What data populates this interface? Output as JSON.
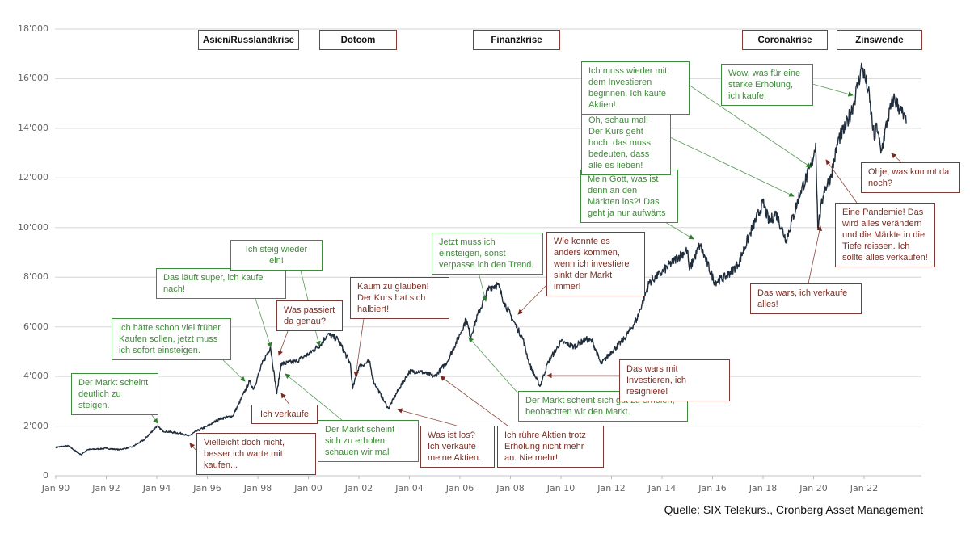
{
  "chart_data": {
    "type": "line",
    "title": "",
    "xlabel": "",
    "ylabel": "",
    "ylim": [
      0,
      18000
    ],
    "yticks": [
      "0",
      "2'000",
      "4'000",
      "6'000",
      "8'000",
      "10'000",
      "12'000",
      "14'000",
      "16'000",
      "18'000"
    ],
    "xticks": [
      "Jan 90",
      "Jan 92",
      "Jan 94",
      "Jan 96",
      "Jan 98",
      "Jan 00",
      "Jan 02",
      "Jan 04",
      "Jan 06",
      "Jan 08",
      "Jan 10",
      "Jan 12",
      "Jan 14",
      "Jan 16",
      "Jan 18",
      "Jan 20",
      "Jan 22"
    ],
    "grid": "horizontal",
    "line_color": "#1f2d3d",
    "series": [
      {
        "x": [
          "1990-01",
          "1990-07",
          "1990-12",
          "1991-01",
          "1991-04",
          "1992-01",
          "1992-07",
          "1993-01",
          "1993-07",
          "1994-01",
          "1994-04",
          "1995-01",
          "1995-04",
          "1995-08",
          "1996-01",
          "1996-07",
          "1997-01",
          "1997-04",
          "1997-09",
          "1997-11",
          "1998-03",
          "1998-07",
          "1998-10",
          "1998-12",
          "1999-07",
          "2000-01",
          "2000-07",
          "2000-10",
          "2001-03",
          "2001-09",
          "2001-10",
          "2002-01",
          "2002-06",
          "2002-08",
          "2003-01",
          "2003-03",
          "2003-08",
          "2004-01",
          "2004-06",
          "2005-01",
          "2005-07",
          "2006-01",
          "2006-04",
          "2006-06",
          "2006-10",
          "2007-03",
          "2007-07",
          "2007-10",
          "2008-02",
          "2008-07",
          "2008-10",
          "2009-03",
          "2009-07",
          "2010-01",
          "2010-07",
          "2011-01",
          "2011-04",
          "2011-08",
          "2012-01",
          "2012-07",
          "2013-01",
          "2013-07",
          "2014-01",
          "2014-07",
          "2015-01",
          "2015-02",
          "2015-07",
          "2016-02",
          "2016-07",
          "2017-01",
          "2017-07",
          "2018-01",
          "2018-04",
          "2018-07",
          "2018-12",
          "2019-07",
          "2019-12",
          "2020-02",
          "2020-03",
          "2020-06",
          "2020-09",
          "2021-01",
          "2021-04",
          "2021-08",
          "2021-12",
          "2022-03",
          "2022-06",
          "2022-07",
          "2022-09",
          "2022-12",
          "2023-03",
          "2023-06",
          "2023-09"
        ],
        "y": [
          1150,
          1200,
          900,
          850,
          1050,
          1100,
          1050,
          1150,
          1450,
          2000,
          1800,
          1700,
          1600,
          1800,
          2000,
          2300,
          2400,
          2900,
          3800,
          3500,
          4500,
          5200,
          3300,
          4500,
          4600,
          4900,
          5300,
          5700,
          5500,
          4500,
          3500,
          4400,
          4600,
          3800,
          3000,
          2700,
          3500,
          4200,
          4200,
          4000,
          4600,
          5700,
          6300,
          5600,
          6600,
          7600,
          7700,
          7000,
          6300,
          5500,
          4500,
          3600,
          4600,
          5400,
          5200,
          5500,
          5400,
          4500,
          5000,
          5500,
          6300,
          7800,
          8200,
          8700,
          9100,
          8300,
          9300,
          7800,
          8000,
          8500,
          9800,
          11000,
          10200,
          10600,
          9500,
          11500,
          12500,
          13400,
          10000,
          11500,
          12000,
          13600,
          14000,
          15000,
          16500,
          15500,
          13500,
          14200,
          13000,
          14300,
          15200,
          14800,
          14200
        ]
      }
    ]
  },
  "crises": [
    "Asien/Russlandkrise",
    "Dotcom",
    "Finanzkrise",
    "Coronakrise",
    "Zinswende"
  ],
  "annotations_green": [
    "Der Markt scheint deutlich zu steigen.",
    "Ich hätte schon viel früher Kaufen sollen, jetzt muss ich sofort einsteigen.",
    "Das läuft super, ich kaufe nach!",
    "Ich steig wieder ein!",
    "Jetzt muss ich einsteigen, sonst verpasse ich den Trend.",
    "Der Markt scheint sich zu erholen, schauen wir mal",
    "Der Markt scheint sich gut zu erholen, beobachten wir den Markt.",
    "Mein Gott, was ist denn an den Märkten los?! Das geht ja nur aufwärts",
    "Oh, schau mal! Der Kurs geht hoch, das muss bedeuten, dass alle es lieben!",
    "Ich muss wieder mit dem Investieren beginnen. Ich kaufe Aktien!",
    "Wow, was für eine starke Erholung, ich kaufe!"
  ],
  "annotations_red": [
    "Vielleicht doch nicht, besser ich warte mit kaufen...",
    "Ich verkaufe",
    "Was passiert da genau?",
    "Kaum zu glauben! Der Kurs hat sich halbiert!",
    "Was ist los? Ich verkaufe meine Aktien.",
    "Ich rühre Aktien trotz Erholung nicht mehr an. Nie mehr!",
    "Wie konnte es anders kommen, wenn ich investiere sinkt der Markt immer!",
    "Das wars mit Investieren, ich resigniere!",
    "Das wars, ich verkaufe alles!",
    "Eine Pandemie! Das wird alles verändern und die Märkte in die Tiefe reissen. Ich sollte alles verkaufen!",
    "Ohje, was kommt da noch?"
  ],
  "colors": {
    "green": "#3d8b3d",
    "red": "#7b3a33",
    "line": "#1f2d3d"
  },
  "source": "Quelle: SIX Telekurs., Cronberg Asset Management"
}
